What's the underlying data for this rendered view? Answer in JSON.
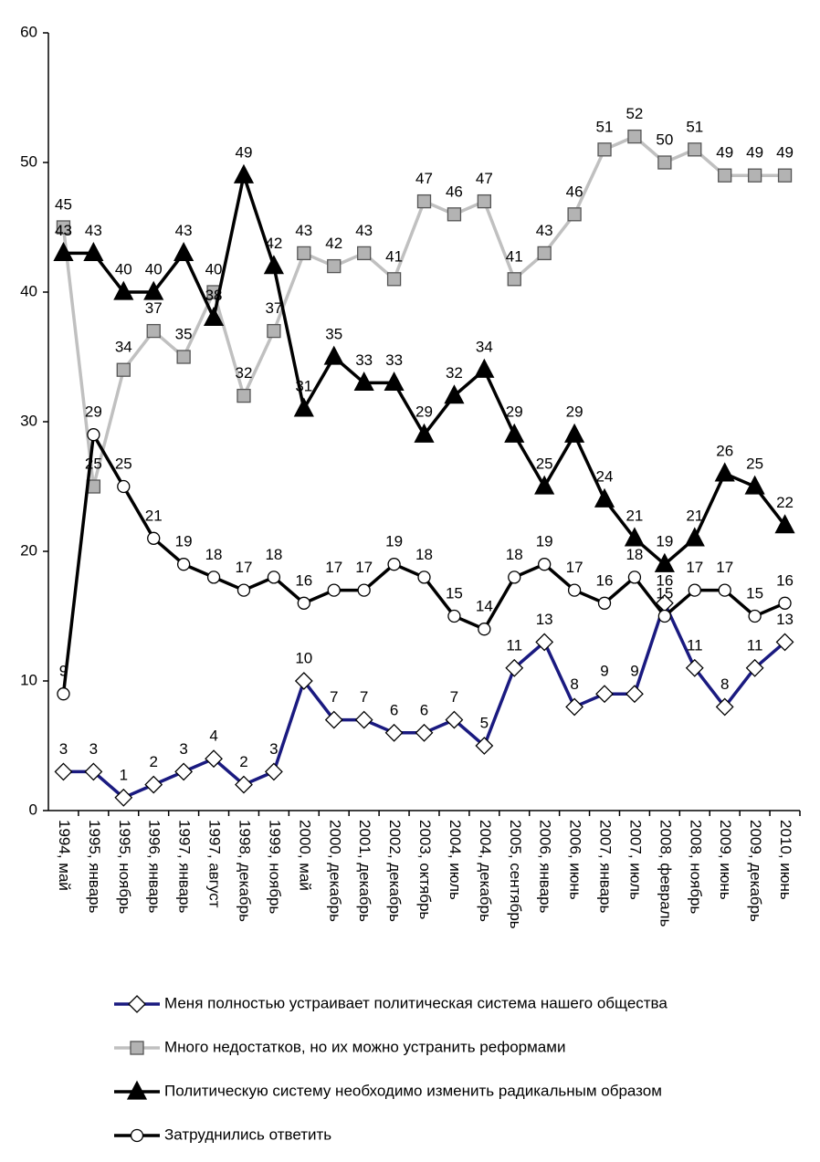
{
  "chart_data": {
    "type": "line",
    "categories": [
      "1994, май",
      "1995, январь",
      "1995, ноябрь",
      "1996, январь",
      "1997, январь",
      "1997, август",
      "1998, декабрь",
      "1999, ноябрь",
      "2000, май",
      "2000, декабрь",
      "2001, декабрь",
      "2002, декабрь",
      "2003, октябрь",
      "2004, июль",
      "2004, декабрь",
      "2005, сентябрь",
      "2006, январь",
      "2006, июнь",
      "2007, январь",
      "2007, июль",
      "2008, февраль",
      "2008, ноябрь",
      "2009, июнь",
      "2009, декабрь",
      "2010, июнь"
    ],
    "series": [
      {
        "name": "Меня полностью устраивает политическая система нашего общества",
        "color": "#1a1a80",
        "marker": "diamond",
        "marker_fill": "#ffffff",
        "values": [
          3,
          3,
          1,
          2,
          3,
          4,
          2,
          3,
          10,
          7,
          7,
          6,
          6,
          7,
          5,
          11,
          13,
          8,
          9,
          9,
          16,
          11,
          8,
          11,
          13
        ]
      },
      {
        "name": "Много недостатков, но их можно устранить реформами",
        "color": "#c0c0c0",
        "marker": "square",
        "marker_fill": "#b3b3b3",
        "values": [
          45,
          25,
          34,
          37,
          35,
          40,
          32,
          37,
          43,
          42,
          43,
          41,
          47,
          46,
          47,
          41,
          43,
          46,
          51,
          52,
          50,
          51,
          49,
          49,
          49
        ]
      },
      {
        "name": "Политическую систему необходимо изменить радикальным образом",
        "color": "#000000",
        "marker": "triangle",
        "marker_fill": "#000000",
        "values": [
          43,
          43,
          40,
          40,
          43,
          38,
          49,
          42,
          31,
          35,
          33,
          33,
          29,
          32,
          34,
          29,
          25,
          29,
          24,
          21,
          19,
          21,
          26,
          25,
          22
        ]
      },
      {
        "name": "Затруднились ответить",
        "color": "#000000",
        "marker": "circle",
        "marker_fill": "#ffffff",
        "values": [
          9,
          29,
          25,
          21,
          19,
          18,
          17,
          18,
          16,
          17,
          17,
          19,
          18,
          15,
          14,
          18,
          19,
          17,
          16,
          18,
          15,
          17,
          17,
          15,
          16
        ]
      }
    ],
    "ylim": [
      0,
      60
    ],
    "yticks": [
      0,
      10,
      20,
      30,
      40,
      50,
      60
    ],
    "grid": false
  }
}
